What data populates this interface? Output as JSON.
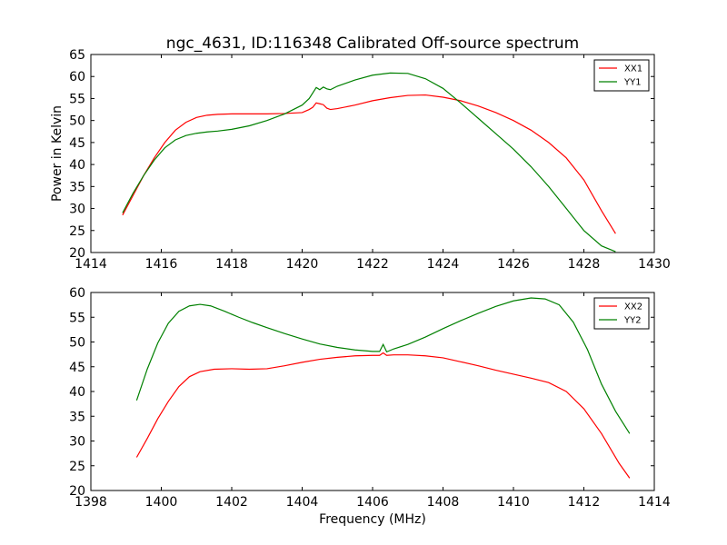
{
  "chart_data": [
    {
      "type": "line",
      "title": "ngc_4631, ID:116348 Calibrated Off-source spectrum",
      "xlabel": "",
      "ylabel": "Power in Kelvin",
      "xlim": [
        1414,
        1430
      ],
      "ylim": [
        20,
        65
      ],
      "xticks": [
        1414,
        1416,
        1418,
        1420,
        1422,
        1424,
        1426,
        1428,
        1430
      ],
      "yticks": [
        20,
        25,
        30,
        35,
        40,
        45,
        50,
        55,
        60,
        65
      ],
      "legend": "top-right",
      "series": [
        {
          "name": "XX1",
          "color": "#ff0000",
          "x": [
            1414.9,
            1415.2,
            1415.5,
            1415.8,
            1416.1,
            1416.4,
            1416.7,
            1417.0,
            1417.3,
            1417.6,
            1418.0,
            1418.5,
            1419.0,
            1419.5,
            1420.0,
            1420.2,
            1420.3,
            1420.4,
            1420.5,
            1420.6,
            1420.7,
            1420.8,
            1421.0,
            1421.5,
            1422.0,
            1422.5,
            1423.0,
            1423.5,
            1424.0,
            1424.5,
            1425.0,
            1425.5,
            1426.0,
            1426.5,
            1427.0,
            1427.5,
            1428.0,
            1428.5,
            1428.9
          ],
          "y": [
            28.5,
            33.0,
            37.5,
            41.5,
            45.0,
            47.8,
            49.6,
            50.7,
            51.2,
            51.4,
            51.5,
            51.5,
            51.5,
            51.6,
            51.8,
            52.5,
            53.0,
            54.0,
            53.8,
            53.6,
            52.8,
            52.5,
            52.7,
            53.5,
            54.5,
            55.2,
            55.7,
            55.8,
            55.3,
            54.5,
            53.3,
            51.8,
            50.0,
            47.8,
            45.0,
            41.5,
            36.5,
            29.5,
            24.3
          ]
        },
        {
          "name": "YY1",
          "color": "#008000",
          "x": [
            1414.9,
            1415.2,
            1415.5,
            1415.8,
            1416.1,
            1416.4,
            1416.7,
            1417.0,
            1417.3,
            1417.6,
            1418.0,
            1418.5,
            1419.0,
            1419.5,
            1420.0,
            1420.2,
            1420.4,
            1420.5,
            1420.6,
            1420.7,
            1420.8,
            1421.0,
            1421.5,
            1422.0,
            1422.5,
            1423.0,
            1423.5,
            1424.0,
            1424.5,
            1425.0,
            1425.5,
            1426.0,
            1426.5,
            1427.0,
            1427.5,
            1428.0,
            1428.5,
            1428.9
          ],
          "y": [
            29.0,
            33.5,
            37.5,
            41.0,
            43.8,
            45.6,
            46.6,
            47.1,
            47.4,
            47.6,
            48.0,
            48.8,
            50.0,
            51.5,
            53.5,
            55.0,
            57.5,
            57.0,
            57.6,
            57.2,
            57.0,
            57.8,
            59.2,
            60.3,
            60.8,
            60.7,
            59.5,
            57.3,
            54.0,
            50.5,
            47.0,
            43.5,
            39.5,
            35.0,
            30.0,
            25.0,
            21.5,
            20.2
          ]
        }
      ]
    },
    {
      "type": "line",
      "title": "",
      "xlabel": "Frequency (MHz)",
      "ylabel": "",
      "xlim": [
        1398,
        1414
      ],
      "ylim": [
        20,
        60
      ],
      "xticks": [
        1398,
        1400,
        1402,
        1404,
        1406,
        1408,
        1410,
        1412,
        1414
      ],
      "yticks": [
        20,
        25,
        30,
        35,
        40,
        45,
        50,
        55,
        60
      ],
      "legend": "top-right",
      "series": [
        {
          "name": "XX2",
          "color": "#ff0000",
          "x": [
            1399.3,
            1399.6,
            1399.9,
            1400.2,
            1400.5,
            1400.8,
            1401.1,
            1401.5,
            1402.0,
            1402.5,
            1403.0,
            1403.5,
            1404.0,
            1404.5,
            1405.0,
            1405.5,
            1406.0,
            1406.2,
            1406.3,
            1406.4,
            1406.6,
            1407.0,
            1407.5,
            1408.0,
            1408.5,
            1409.0,
            1409.5,
            1410.0,
            1410.5,
            1411.0,
            1411.5,
            1412.0,
            1412.5,
            1413.0,
            1413.3
          ],
          "y": [
            26.7,
            30.5,
            34.5,
            38.0,
            41.0,
            43.0,
            44.0,
            44.5,
            44.6,
            44.5,
            44.6,
            45.2,
            45.9,
            46.5,
            46.9,
            47.2,
            47.3,
            47.3,
            47.8,
            47.3,
            47.4,
            47.4,
            47.2,
            46.8,
            46.0,
            45.2,
            44.3,
            43.5,
            42.7,
            41.8,
            40.0,
            36.5,
            31.5,
            25.5,
            22.5
          ]
        },
        {
          "name": "YY2",
          "color": "#008000",
          "x": [
            1399.3,
            1399.6,
            1399.9,
            1400.2,
            1400.5,
            1400.8,
            1401.1,
            1401.4,
            1401.8,
            1402.2,
            1402.6,
            1403.0,
            1403.5,
            1404.0,
            1404.5,
            1405.0,
            1405.5,
            1406.0,
            1406.2,
            1406.3,
            1406.4,
            1406.6,
            1407.0,
            1407.5,
            1408.0,
            1408.5,
            1409.0,
            1409.5,
            1410.0,
            1410.5,
            1410.9,
            1411.3,
            1411.7,
            1412.1,
            1412.5,
            1412.9,
            1413.3
          ],
          "y": [
            38.2,
            44.5,
            49.8,
            53.8,
            56.2,
            57.3,
            57.6,
            57.3,
            56.2,
            55.0,
            53.9,
            52.9,
            51.7,
            50.6,
            49.6,
            48.9,
            48.4,
            48.1,
            48.1,
            49.5,
            48.0,
            48.6,
            49.5,
            51.0,
            52.7,
            54.3,
            55.8,
            57.2,
            58.3,
            58.9,
            58.7,
            57.5,
            54.0,
            48.5,
            41.5,
            36.0,
            31.5
          ]
        }
      ]
    }
  ]
}
